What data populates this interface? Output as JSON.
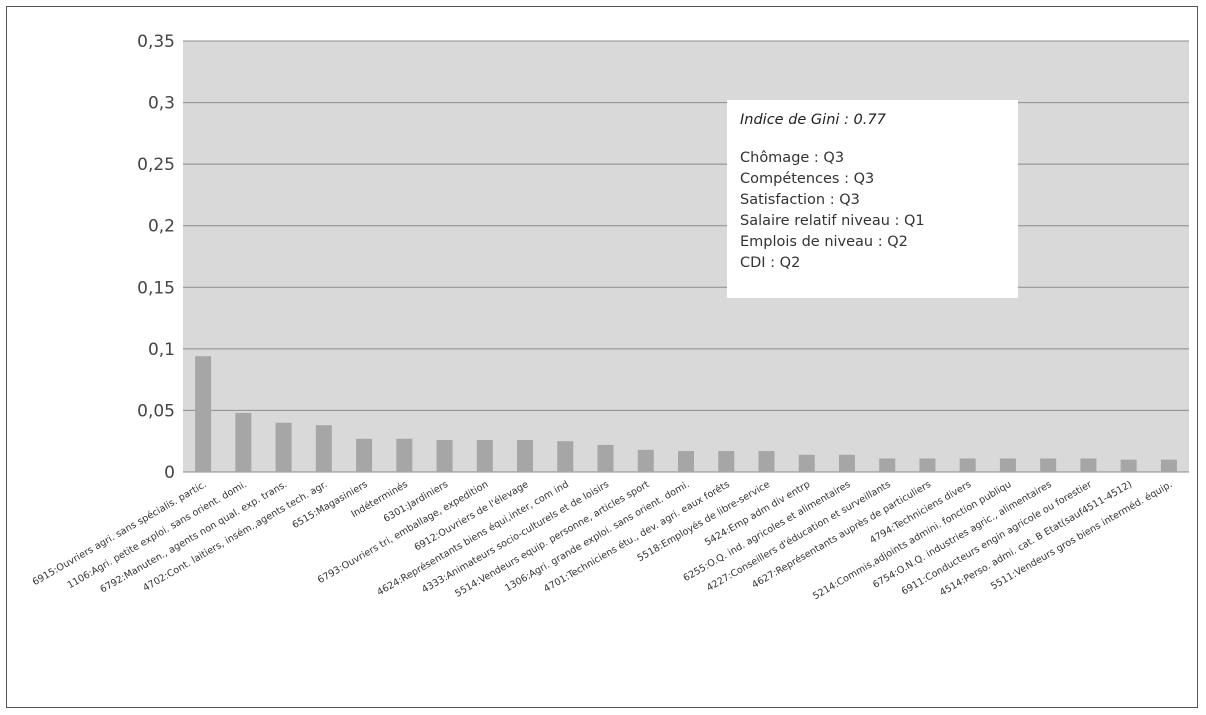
{
  "chart_data": {
    "type": "bar",
    "title": "",
    "xlabel": "",
    "ylabel": "",
    "ylim": [
      0,
      0.35
    ],
    "yticks": [
      "0",
      "0,05",
      "0,1",
      "0,15",
      "0,2",
      "0,25",
      "0,3",
      "0,35"
    ],
    "grid": true,
    "colors": {
      "plot_bg": "#d9d9d9",
      "bar": "#a6a6a6",
      "grid": "#8c8c8c"
    },
    "categories": [
      "6915:Ouvriers agri. sans spécialis. partic.",
      "1106:Agri. petite exploi. sans orient. domi.",
      "6792:Manuten., agents non qual. exp. trans.",
      "4702:Cont. laitiers, insém.,agents tech. agr.",
      "6515:Magasiniers",
      "Indéterminés",
      "6301:Jardiniers",
      "6793:Ouvriers tri, emballage, expedition",
      "6912:Ouvriers de l'élevage",
      "4624:Représentants biens équi,inter, com ind",
      "4333:Animateurs socio-culturels et de loisirs",
      "5514:Vendeurs equip. personne, articles sport",
      "1306:Agri. grande exploi. sans orient. domi.",
      "4701:Techniciens étu., dev. agri. eaux forêts",
      "5518:Employés de libre-service",
      "5424:Emp adm div entrp",
      "6255:O.Q. ind. agricoles et alimentaires",
      "4227:Conseillers d'éducation et surveillants",
      "4627:Représentants auprès de particuliers",
      "4794:Techniciens divers",
      "5214:Commis,adjoints admini. fonction publiqu",
      "6754:O.N.Q. industries agric., alimentaires",
      "6911:Conducteurs engin agricole ou forestier",
      "4514:Perso. admi. cat. B  Etat(sauf4511-4512)",
      "5511:Vendeurs gros biens interméd. équip."
    ],
    "values": [
      0.094,
      0.048,
      0.04,
      0.038,
      0.027,
      0.027,
      0.026,
      0.026,
      0.026,
      0.025,
      0.022,
      0.018,
      0.017,
      0.017,
      0.017,
      0.014,
      0.014,
      0.011,
      0.011,
      0.011,
      0.011,
      0.011,
      0.011,
      0.01,
      0.01
    ],
    "annotation": {
      "title": "Indice de Gini : 0.77",
      "lines": [
        "Chômage : Q3",
        "Compétences : Q3",
        "Satisfaction : Q3",
        "Salaire relatif niveau : Q1",
        "Emplois de niveau : Q2",
        "CDI : Q2"
      ]
    }
  }
}
